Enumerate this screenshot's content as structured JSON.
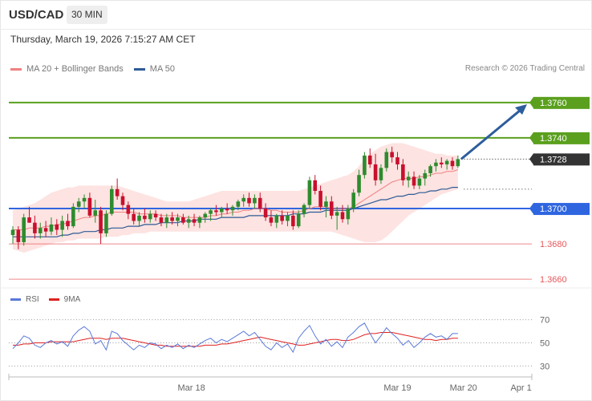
{
  "header": {
    "symbol": "USD/CAD",
    "timeframe": "30 MIN",
    "datetime": "Thursday, March 19, 2026 7:15:27 AM CET"
  },
  "legend": {
    "ma20_label": "MA 20 + Bollinger Bands",
    "ma50_label": "MA 50",
    "ma20_color": "#f08080",
    "ma50_color": "#2e5a96",
    "copyright": "Research © 2026 Trading Central"
  },
  "rsi_legend": {
    "rsi_label": "RSI",
    "ma_label": "9MA",
    "rsi_color": "#5a78d8",
    "ma_color": "#e02020"
  },
  "colors": {
    "resistance": "#5aa01e",
    "pivot": "#2f66e0",
    "support": "#e8575b",
    "current": "#333333",
    "bull_candle": "#2e8b2e",
    "bear_candle": "#c8102e",
    "band_fill": "#fde0de",
    "arrow": "#2d5d9c"
  },
  "chart_data": [
    {
      "type": "candlestick",
      "y_unit": "price",
      "ylim": [
        1.3656,
        1.3774
      ],
      "levels": [
        {
          "value": 1.376,
          "label": "1.3760",
          "kind": "resistance"
        },
        {
          "value": 1.374,
          "label": "1.3740",
          "kind": "resistance"
        },
        {
          "value": 1.3728,
          "label": "1.3728",
          "kind": "current"
        },
        {
          "value": 1.37,
          "label": "1.3700",
          "kind": "pivot"
        },
        {
          "value": 1.368,
          "label": "1.3680",
          "kind": "support"
        },
        {
          "value": 1.366,
          "label": "1.3660",
          "kind": "support"
        }
      ],
      "candles": [
        [
          1.3685,
          1.369,
          1.368,
          1.3688
        ],
        [
          1.3688,
          1.369,
          1.3677,
          1.3681
        ],
        [
          1.3681,
          1.3697,
          1.3679,
          1.3695
        ],
        [
          1.3695,
          1.3701,
          1.3692,
          1.3692
        ],
        [
          1.3692,
          1.3696,
          1.3683,
          1.3686
        ],
        [
          1.3686,
          1.3692,
          1.3683,
          1.3689
        ],
        [
          1.3689,
          1.3693,
          1.3684,
          1.3687
        ],
        [
          1.3687,
          1.3695,
          1.3685,
          1.3691
        ],
        [
          1.3691,
          1.3694,
          1.3685,
          1.3688
        ],
        [
          1.3688,
          1.3696,
          1.3684,
          1.3693
        ],
        [
          1.3693,
          1.3697,
          1.3688,
          1.369
        ],
        [
          1.369,
          1.3703,
          1.3689,
          1.3701
        ],
        [
          1.3701,
          1.3706,
          1.3698,
          1.3704
        ],
        [
          1.3704,
          1.3708,
          1.37,
          1.3706
        ],
        [
          1.3706,
          1.3709,
          1.3695,
          1.3696
        ],
        [
          1.3696,
          1.3705,
          1.3692,
          1.3699
        ],
        [
          1.3699,
          1.3701,
          1.368,
          1.3686
        ],
        [
          1.3686,
          1.3699,
          1.3684,
          1.3697
        ],
        [
          1.3697,
          1.3713,
          1.3696,
          1.3711
        ],
        [
          1.3711,
          1.3717,
          1.3705,
          1.3707
        ],
        [
          1.3707,
          1.3709,
          1.3699,
          1.3702
        ],
        [
          1.3702,
          1.3704,
          1.3694,
          1.3697
        ],
        [
          1.3697,
          1.37,
          1.3691,
          1.3693
        ],
        [
          1.3693,
          1.3698,
          1.369,
          1.3696
        ],
        [
          1.3696,
          1.37,
          1.3692,
          1.3694
        ],
        [
          1.3694,
          1.3699,
          1.3692,
          1.3697
        ],
        [
          1.3697,
          1.3699,
          1.3693,
          1.3695
        ],
        [
          1.3695,
          1.3697,
          1.369,
          1.3692
        ],
        [
          1.3692,
          1.3697,
          1.3689,
          1.3695
        ],
        [
          1.3695,
          1.3698,
          1.3691,
          1.3693
        ],
        [
          1.3693,
          1.3697,
          1.369,
          1.3695
        ],
        [
          1.3695,
          1.3697,
          1.3691,
          1.3692
        ],
        [
          1.3692,
          1.3696,
          1.3689,
          1.3694
        ],
        [
          1.3694,
          1.3697,
          1.369,
          1.3692
        ],
        [
          1.3692,
          1.3696,
          1.3689,
          1.3695
        ],
        [
          1.3695,
          1.3698,
          1.3692,
          1.3697
        ],
        [
          1.3697,
          1.37,
          1.3693,
          1.3699
        ],
        [
          1.3699,
          1.3702,
          1.3696,
          1.3698
        ],
        [
          1.3698,
          1.3701,
          1.3695,
          1.37
        ],
        [
          1.37,
          1.3703,
          1.3697,
          1.3699
        ],
        [
          1.3699,
          1.3702,
          1.3696,
          1.3701
        ],
        [
          1.3701,
          1.3705,
          1.3699,
          1.3704
        ],
        [
          1.3704,
          1.3708,
          1.3701,
          1.3706
        ],
        [
          1.3706,
          1.3709,
          1.3701,
          1.3703
        ],
        [
          1.3703,
          1.3708,
          1.37,
          1.3706
        ],
        [
          1.3706,
          1.3709,
          1.3698,
          1.37
        ],
        [
          1.37,
          1.3703,
          1.3693,
          1.3695
        ],
        [
          1.3695,
          1.3699,
          1.369,
          1.3692
        ],
        [
          1.3692,
          1.3697,
          1.3689,
          1.3696
        ],
        [
          1.3696,
          1.3699,
          1.3691,
          1.3693
        ],
        [
          1.3693,
          1.3698,
          1.369,
          1.3696
        ],
        [
          1.3696,
          1.3699,
          1.3688,
          1.369
        ],
        [
          1.369,
          1.3699,
          1.3689,
          1.3697
        ],
        [
          1.3697,
          1.3703,
          1.3695,
          1.3702
        ],
        [
          1.3702,
          1.3718,
          1.37,
          1.3716
        ],
        [
          1.3716,
          1.3719,
          1.3708,
          1.371
        ],
        [
          1.371,
          1.3713,
          1.3699,
          1.3701
        ],
        [
          1.3701,
          1.3707,
          1.3695,
          1.3704
        ],
        [
          1.3704,
          1.3707,
          1.3694,
          1.3696
        ],
        [
          1.3696,
          1.3701,
          1.3688,
          1.3698
        ],
        [
          1.3698,
          1.3702,
          1.3692,
          1.3694
        ],
        [
          1.3694,
          1.3702,
          1.3691,
          1.37
        ],
        [
          1.37,
          1.3711,
          1.3698,
          1.3709
        ],
        [
          1.3709,
          1.3722,
          1.3707,
          1.3719
        ],
        [
          1.3719,
          1.3732,
          1.3717,
          1.373
        ],
        [
          1.373,
          1.3734,
          1.3723,
          1.3725
        ],
        [
          1.3725,
          1.3731,
          1.3713,
          1.3716
        ],
        [
          1.3716,
          1.3725,
          1.3714,
          1.3723
        ],
        [
          1.3723,
          1.3734,
          1.3721,
          1.3732
        ],
        [
          1.3732,
          1.3735,
          1.3726,
          1.3729
        ],
        [
          1.3729,
          1.3732,
          1.3722,
          1.3725
        ],
        [
          1.3725,
          1.3728,
          1.3713,
          1.3716
        ],
        [
          1.3716,
          1.3721,
          1.3712,
          1.3718
        ],
        [
          1.3718,
          1.3721,
          1.3711,
          1.3713
        ],
        [
          1.3713,
          1.3719,
          1.3711,
          1.3717
        ],
        [
          1.3717,
          1.3722,
          1.3713,
          1.372
        ],
        [
          1.372,
          1.3725,
          1.3718,
          1.3724
        ],
        [
          1.3724,
          1.3728,
          1.3721,
          1.3726
        ],
        [
          1.3726,
          1.3729,
          1.3723,
          1.3725
        ],
        [
          1.3725,
          1.3728,
          1.3722,
          1.3727
        ],
        [
          1.3727,
          1.3729,
          1.3722,
          1.3724
        ],
        [
          1.3724,
          1.373,
          1.3723,
          1.3728
        ]
      ],
      "ma20": [
        1.3688,
        1.3688,
        1.3688,
        1.3689,
        1.3689,
        1.3689,
        1.369,
        1.369,
        1.3691,
        1.3691,
        1.3692,
        1.3693,
        1.3694,
        1.3695,
        1.3695,
        1.3696,
        1.3696,
        1.3697,
        1.3698,
        1.3698,
        1.3698,
        1.3698,
        1.3698,
        1.3697,
        1.3697,
        1.3697,
        1.3697,
        1.3696,
        1.3696,
        1.3696,
        1.3696,
        1.3695,
        1.3695,
        1.3695,
        1.3695,
        1.3695,
        1.3696,
        1.3696,
        1.3697,
        1.3697,
        1.3698,
        1.3698,
        1.3699,
        1.3699,
        1.37,
        1.37,
        1.37,
        1.3699,
        1.3699,
        1.3698,
        1.3698,
        1.3698,
        1.3698,
        1.3699,
        1.37,
        1.3701,
        1.3701,
        1.3701,
        1.37,
        1.37,
        1.37,
        1.37,
        1.3701,
        1.3703,
        1.3705,
        1.3707,
        1.3709,
        1.3711,
        1.3713,
        1.3715,
        1.3716,
        1.3717,
        1.3717,
        1.3717,
        1.3718,
        1.3718,
        1.3719,
        1.372,
        1.372,
        1.3721,
        1.3721,
        1.3722
      ],
      "band_upper": [
        1.3699,
        1.37,
        1.3701,
        1.3702,
        1.3703,
        1.3705,
        1.3707,
        1.3709,
        1.371,
        1.3711,
        1.3712,
        1.3712,
        1.3713,
        1.3713,
        1.3713,
        1.3713,
        1.3713,
        1.3713,
        1.3713,
        1.3713,
        1.3712,
        1.3711,
        1.371,
        1.3709,
        1.3708,
        1.3707,
        1.3706,
        1.3705,
        1.3704,
        1.3704,
        1.3704,
        1.3704,
        1.3704,
        1.3705,
        1.3706,
        1.3707,
        1.3708,
        1.3709,
        1.371,
        1.371,
        1.371,
        1.371,
        1.371,
        1.371,
        1.371,
        1.371,
        1.371,
        1.371,
        1.371,
        1.371,
        1.371,
        1.371,
        1.371,
        1.3711,
        1.3712,
        1.3713,
        1.3714,
        1.3715,
        1.3716,
        1.3717,
        1.3718,
        1.3719,
        1.3721,
        1.3724,
        1.3728,
        1.3731,
        1.3733,
        1.3735,
        1.3736,
        1.3737,
        1.3737,
        1.3737,
        1.3736,
        1.3735,
        1.3734,
        1.3733,
        1.3732,
        1.3731,
        1.3731,
        1.373,
        1.373,
        1.373
      ],
      "band_lower": [
        1.3677,
        1.3676,
        1.3675,
        1.3676,
        1.3677,
        1.3678,
        1.3679,
        1.368,
        1.3681,
        1.3681,
        1.3682,
        1.3682,
        1.3683,
        1.3683,
        1.3683,
        1.3683,
        1.3683,
        1.3684,
        1.3684,
        1.3684,
        1.3685,
        1.3685,
        1.3686,
        1.3686,
        1.3686,
        1.3687,
        1.3687,
        1.3687,
        1.3687,
        1.3687,
        1.3687,
        1.3687,
        1.3687,
        1.3687,
        1.3687,
        1.3687,
        1.3687,
        1.3687,
        1.3687,
        1.3687,
        1.3687,
        1.3687,
        1.3687,
        1.3687,
        1.3687,
        1.3687,
        1.3687,
        1.3687,
        1.3687,
        1.3687,
        1.3687,
        1.3687,
        1.3687,
        1.3687,
        1.3687,
        1.3687,
        1.3687,
        1.3687,
        1.3687,
        1.3686,
        1.3685,
        1.3684,
        1.3683,
        1.3682,
        1.3681,
        1.3681,
        1.3681,
        1.3682,
        1.3684,
        1.3687,
        1.369,
        1.3693,
        1.3696,
        1.3698,
        1.37,
        1.3702,
        1.3704,
        1.3706,
        1.3708,
        1.3709,
        1.371,
        1.3711
      ],
      "ma50": [
        1.3684,
        1.3684,
        1.3684,
        1.3684,
        1.3684,
        1.3684,
        1.3684,
        1.3684,
        1.3684,
        1.3685,
        1.3685,
        1.3686,
        1.3686,
        1.3687,
        1.3687,
        1.3687,
        1.3688,
        1.3688,
        1.3689,
        1.3689,
        1.3689,
        1.369,
        1.369,
        1.369,
        1.3691,
        1.3691,
        1.3691,
        1.3692,
        1.3692,
        1.3692,
        1.3692,
        1.3693,
        1.3693,
        1.3693,
        1.3694,
        1.3694,
        1.3694,
        1.3694,
        1.3695,
        1.3695,
        1.3695,
        1.3695,
        1.3695,
        1.3696,
        1.3696,
        1.3696,
        1.3696,
        1.3696,
        1.3696,
        1.3696,
        1.3696,
        1.3697,
        1.3697,
        1.3697,
        1.3698,
        1.3698,
        1.3698,
        1.3699,
        1.3699,
        1.3699,
        1.3699,
        1.3699,
        1.37,
        1.3701,
        1.3702,
        1.3703,
        1.3704,
        1.3705,
        1.3705,
        1.3706,
        1.3707,
        1.3707,
        1.3708,
        1.3708,
        1.3709,
        1.3709,
        1.371,
        1.371,
        1.3711,
        1.3711,
        1.3712,
        1.3712
      ],
      "projection": {
        "from": 1.3728,
        "to": 1.3759
      }
    },
    {
      "type": "line",
      "name": "RSI",
      "y_ticks": [
        70,
        50,
        30
      ],
      "ylim": [
        22,
        78
      ],
      "rsi": [
        45,
        50,
        56,
        54,
        48,
        46,
        50,
        52,
        49,
        51,
        47,
        56,
        61,
        64,
        60,
        49,
        52,
        44,
        60,
        58,
        52,
        48,
        44,
        48,
        46,
        50,
        49,
        45,
        48,
        46,
        49,
        45,
        48,
        46,
        49,
        52,
        54,
        50,
        53,
        51,
        54,
        57,
        60,
        56,
        59,
        53,
        47,
        44,
        50,
        46,
        49,
        42,
        54,
        60,
        65,
        56,
        49,
        53,
        47,
        51,
        46,
        55,
        59,
        64,
        67,
        58,
        50,
        56,
        63,
        58,
        54,
        48,
        52,
        46,
        50,
        55,
        58,
        55,
        56,
        53,
        58,
        58
      ],
      "rsi_ma": [
        48,
        48,
        49,
        49,
        50,
        50,
        50,
        51,
        51,
        51,
        51,
        51,
        52,
        53,
        54,
        54,
        54,
        53,
        54,
        54,
        54,
        53,
        52,
        51,
        50,
        49,
        48,
        48,
        47,
        47,
        47,
        47,
        47,
        47,
        47,
        48,
        48,
        48,
        49,
        49,
        50,
        51,
        52,
        53,
        54,
        55,
        54,
        53,
        52,
        51,
        50,
        49,
        48,
        48,
        49,
        50,
        51,
        52,
        53,
        53,
        52,
        52,
        53,
        55,
        57,
        58,
        58,
        59,
        59,
        59,
        58,
        57,
        56,
        55,
        54,
        53,
        53,
        52,
        53,
        53,
        54,
        54
      ]
    }
  ],
  "x_axis": {
    "ticks": [
      {
        "label": "Mar 18",
        "index": 32.5
      },
      {
        "label": "Mar 19",
        "index": 70
      },
      {
        "label": "Mar 20",
        "index": 82
      },
      {
        "label": "Apr 1",
        "index": 92.5
      }
    ]
  }
}
